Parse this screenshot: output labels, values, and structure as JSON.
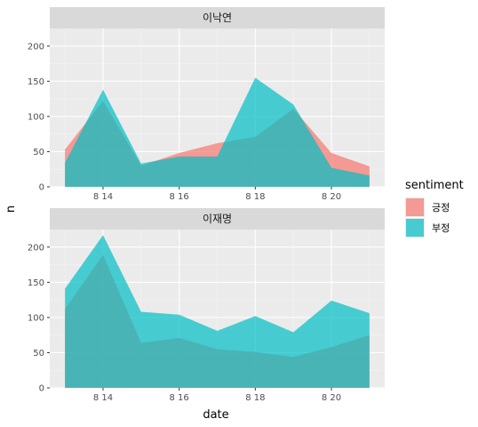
{
  "chart_data": {
    "type": "area",
    "xlabel": "date",
    "ylabel": "n",
    "x": [
      "8 13",
      "8 14",
      "8 15",
      "8 16",
      "8 17",
      "8 18",
      "8 19",
      "8 20",
      "8 21"
    ],
    "x_ticks": [
      "8 14",
      "8 16",
      "8 18",
      "8 20"
    ],
    "ylim": [
      0,
      225
    ],
    "y_ticks": [
      0,
      50,
      100,
      150,
      200
    ],
    "grid": true,
    "legend": {
      "title": "sentiment",
      "position": "right",
      "entries": [
        {
          "name": "긍정",
          "color": "#F8766D"
        },
        {
          "name": "부정",
          "color": "#00BFC4"
        }
      ]
    },
    "panels": [
      {
        "strip": "이낙연",
        "series": [
          {
            "name": "긍정",
            "color": "#F8766D",
            "values": [
              53,
              122,
              30,
              48,
              62,
              71,
              111,
              48,
              29
            ]
          },
          {
            "name": "부정",
            "color": "#00BFC4",
            "values": [
              34,
              138,
              33,
              43,
              43,
              155,
              117,
              27,
              16
            ]
          }
        ]
      },
      {
        "strip": "이재명",
        "series": [
          {
            "name": "긍정",
            "color": "#F8766D",
            "values": [
              112,
              189,
              64,
              71,
              55,
              51,
              44,
              58,
              75
            ]
          },
          {
            "name": "부정",
            "color": "#00BFC4",
            "values": [
              141,
              217,
              108,
              104,
              81,
              102,
              79,
              124,
              106
            ]
          }
        ]
      }
    ]
  }
}
